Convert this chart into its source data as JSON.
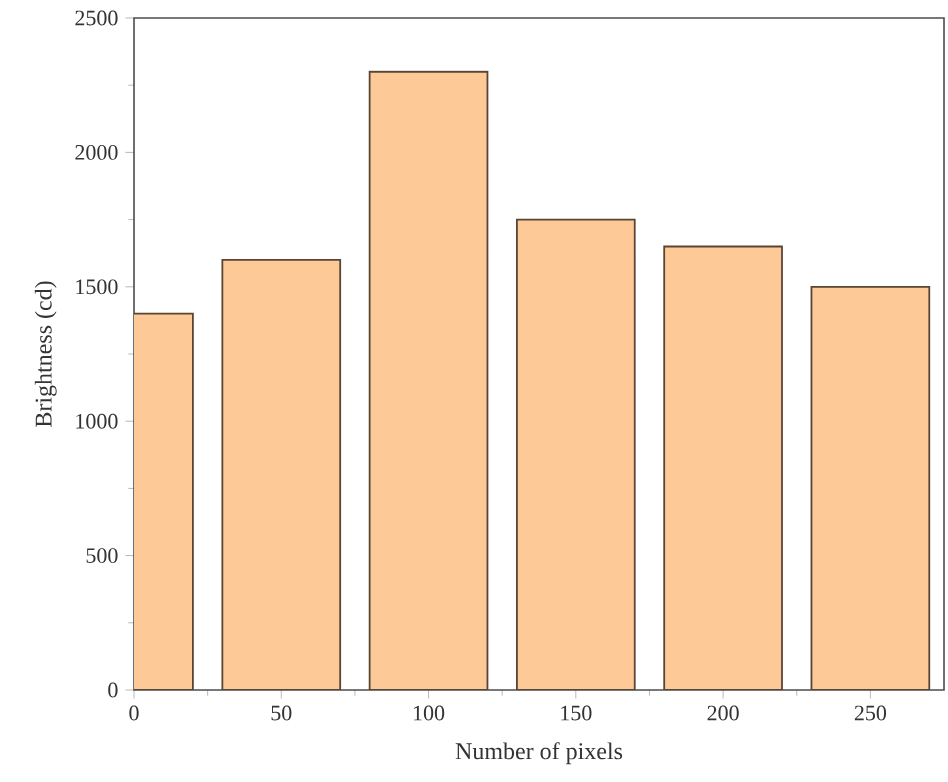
{
  "chart_data": {
    "type": "bar",
    "xlabel": "Number of pixels",
    "ylabel": "Brightness (cd)",
    "x": [
      0,
      50,
      100,
      150,
      200,
      250
    ],
    "values": [
      1400,
      1600,
      2300,
      1750,
      1650,
      1500
    ],
    "color": "#fdc996",
    "xlim": [
      0,
      275
    ],
    "xticks": [
      0,
      50,
      100,
      150,
      200,
      250
    ],
    "ylim": [
      0,
      2500
    ],
    "yticks": [
      0,
      500,
      1000,
      1500,
      2000,
      2500
    ],
    "grid": false
  }
}
